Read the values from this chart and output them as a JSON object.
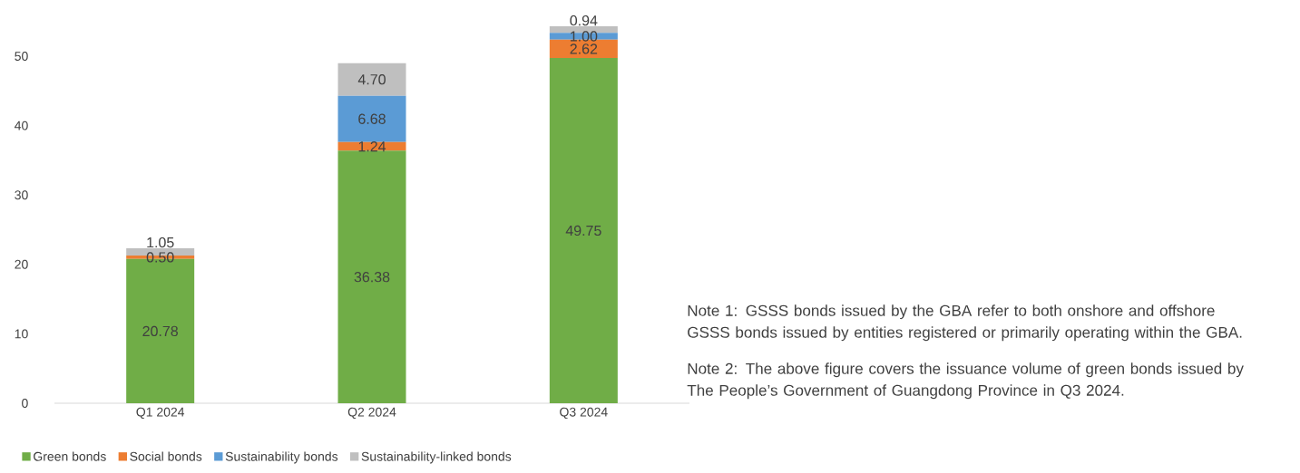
{
  "chart_data": {
    "type": "bar",
    "stacked": true,
    "categories": [
      "Q1 2024",
      "Q2 2024",
      "Q3 2024"
    ],
    "series": [
      {
        "name": "Green bonds",
        "color": "#70ad47",
        "values": [
          20.78,
          36.38,
          49.75
        ],
        "value_labels": [
          "20.78",
          "36.38",
          "49.75"
        ]
      },
      {
        "name": "Social bonds",
        "color": "#ed7d31",
        "values": [
          0.5,
          1.24,
          2.62
        ],
        "value_labels": [
          "0.50",
          "1.24",
          "2.62"
        ]
      },
      {
        "name": "Sustainability bonds",
        "color": "#5b9bd5",
        "values": [
          0,
          6.68,
          1.0
        ],
        "value_labels": [
          null,
          "6.68",
          "1.00"
        ]
      },
      {
        "name": "Sustainability-linked bonds",
        "color": "#bfbfbf",
        "values": [
          1.05,
          4.7,
          0.94
        ],
        "value_labels": [
          "1.05",
          "4.70",
          "0.94"
        ]
      }
    ],
    "ylim": [
      0,
      54.31
    ],
    "yticks": [
      0,
      10,
      20,
      30,
      40,
      50
    ],
    "legend": "bottom left",
    "annotations": [
      "Note 1: GSSS bonds issued by the GBA refer to both onshore and offshore GSSS bonds issued by entities registered or primarily operating within the GBA.",
      "Note 2: The above figure covers the issuance volume of green bonds issued by The People’s Government of Guangdong Province in Q3 2024."
    ]
  }
}
